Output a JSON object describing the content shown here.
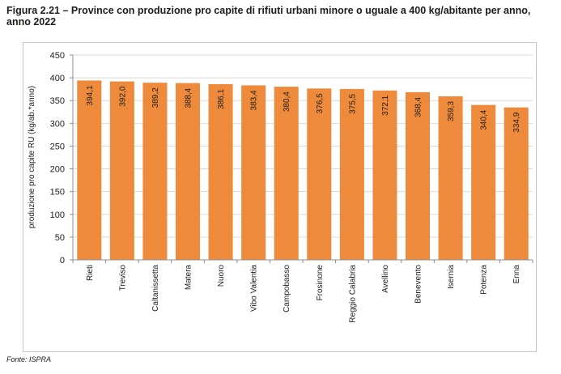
{
  "figure": {
    "title": "Figura 2.21 – Province con produzione pro capite di rifiuti urbani minore o uguale a 400 kg/abitante per anno, anno 2022",
    "source": "Fonte: ISPRA"
  },
  "chart_data": {
    "type": "bar",
    "title": "Figura 2.21 – Province con produzione pro capite di rifiuti urbani minore o uguale a 400 kg/abitante per anno, anno 2022",
    "xlabel": "",
    "ylabel": "produzione pro capite RU (kg/ab.*anno)",
    "ylim": [
      0,
      450
    ],
    "yticks": [
      0,
      50,
      100,
      150,
      200,
      250,
      300,
      350,
      400,
      450
    ],
    "grid": true,
    "categories": [
      "Rieti",
      "Treviso",
      "Caltanissetta",
      "Matera",
      "Nuoro",
      "Vibo Valentia",
      "Campobasso",
      "Frosinone",
      "Reggio Calabria",
      "Avellino",
      "Benevento",
      "Isernia",
      "Potenza",
      "Enna"
    ],
    "values": [
      394.1,
      392.0,
      389.2,
      388.4,
      386.1,
      383.4,
      380.4,
      376.5,
      375.5,
      372.1,
      368.4,
      359.3,
      340.4,
      334.9
    ],
    "labels": [
      "394,1",
      "392,0",
      "389,2",
      "388,4",
      "386,1",
      "383,4",
      "380,4",
      "376,5",
      "375,5",
      "372,1",
      "368,4",
      "359,3",
      "340,4",
      "334,9"
    ],
    "bar_color": "#EE8A3C",
    "grid_color": "#d9d9d9"
  }
}
